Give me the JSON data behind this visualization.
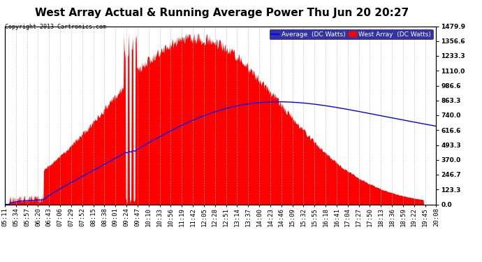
{
  "title": "West Array Actual & Running Average Power Thu Jun 20 20:27",
  "copyright": "Copyright 2013 Cartronics.com",
  "ylabel_right_values": [
    0.0,
    123.3,
    246.7,
    370.0,
    493.3,
    616.6,
    740.0,
    863.3,
    986.6,
    1110.0,
    1233.3,
    1356.6,
    1479.9
  ],
  "ymax": 1479.9,
  "ymin": 0.0,
  "legend_labels": [
    "Average  (DC Watts)",
    "West Array  (DC Watts)"
  ],
  "legend_colors": [
    "#0000ff",
    "#ff0000"
  ],
  "background_color": "#ffffff",
  "plot_bg_color": "#ffffff",
  "grid_color": "#bbbbbb",
  "fill_color": "#ff0000",
  "line_color": "#0000ff",
  "title_fontsize": 11,
  "tick_fontsize": 6.5,
  "n_points": 900,
  "x_tick_labels": [
    "05:11",
    "05:34",
    "05:57",
    "06:20",
    "06:43",
    "07:06",
    "07:29",
    "07:52",
    "08:15",
    "08:38",
    "09:01",
    "09:24",
    "09:47",
    "10:10",
    "10:33",
    "10:56",
    "11:19",
    "11:42",
    "12:05",
    "12:28",
    "12:51",
    "13:14",
    "13:37",
    "14:00",
    "14:23",
    "14:46",
    "15:09",
    "15:32",
    "15:55",
    "16:18",
    "16:41",
    "17:04",
    "17:27",
    "17:50",
    "18:13",
    "18:36",
    "18:59",
    "19:22",
    "19:45",
    "20:08"
  ]
}
